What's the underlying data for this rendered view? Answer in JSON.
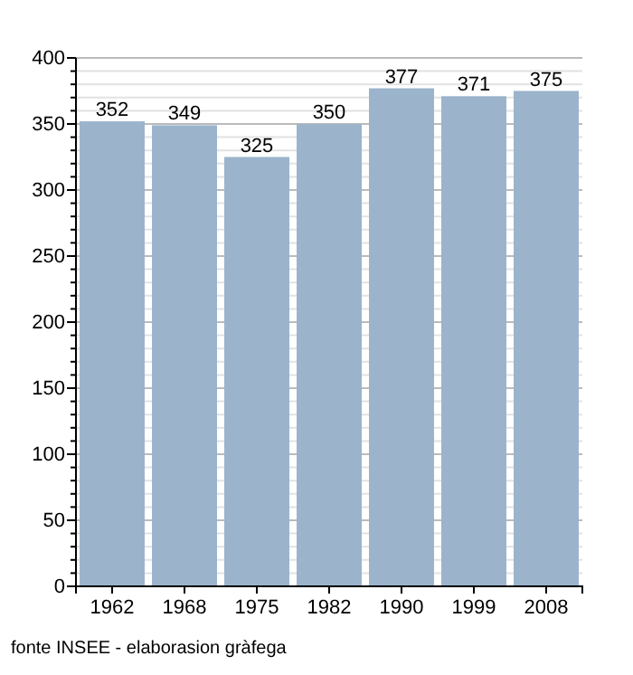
{
  "chart_data": {
    "type": "bar",
    "categories": [
      "1962",
      "1968",
      "1975",
      "1982",
      "1990",
      "1999",
      "2008"
    ],
    "values": [
      352,
      349,
      325,
      350,
      377,
      371,
      375
    ],
    "color": "#9bb4cc",
    "data_labels": true,
    "grid": "y",
    "ylim": [
      0,
      400
    ],
    "yticks": [
      0,
      {
        "value": 10,
        "label": null
      },
      {
        "value": 20,
        "label": null
      },
      {
        "value": 30,
        "label": null
      },
      {
        "value": 40,
        "label": null
      },
      50,
      {
        "value": 60,
        "label": null
      },
      {
        "value": 70,
        "label": null
      },
      {
        "value": 80,
        "label": null
      },
      {
        "value": 90,
        "label": null
      },
      100,
      {
        "value": 110,
        "label": null
      },
      {
        "value": 120,
        "label": null
      },
      {
        "value": 130,
        "label": null
      },
      {
        "value": 140,
        "label": null
      },
      150,
      {
        "value": 160,
        "label": null
      },
      {
        "value": 170,
        "label": null
      },
      {
        "value": 180,
        "label": null
      },
      {
        "value": 190,
        "label": null
      },
      200,
      {
        "value": 210,
        "label": null
      },
      {
        "value": 220,
        "label": null
      },
      {
        "value": 230,
        "label": null
      },
      {
        "value": 240,
        "label": null
      },
      250,
      {
        "value": 260,
        "label": null
      },
      {
        "value": 270,
        "label": null
      },
      {
        "value": 280,
        "label": null
      },
      {
        "value": 290,
        "label": null
      },
      300,
      {
        "value": 310,
        "label": null
      },
      {
        "value": 320,
        "label": null
      },
      {
        "value": 330,
        "label": null
      },
      {
        "value": 340,
        "label": null
      },
      350,
      {
        "value": 360,
        "label": null
      },
      {
        "value": 370,
        "label": null
      },
      {
        "value": 380,
        "label": null
      },
      {
        "value": 390,
        "label": null
      },
      400
    ],
    "annotations": [
      "fonte INSEE - elaborasion gràfega"
    ]
  }
}
